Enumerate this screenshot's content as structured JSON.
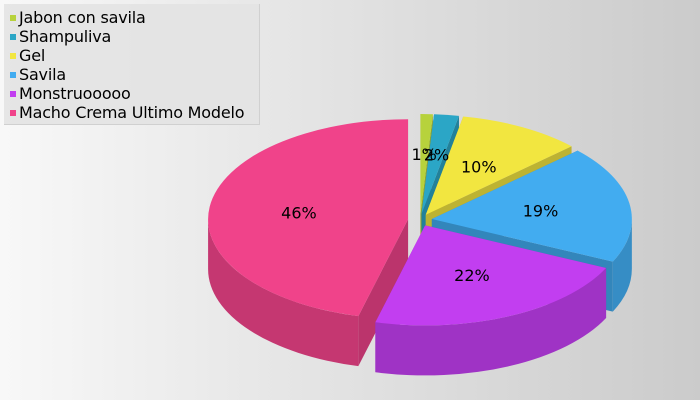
{
  "chart_data": {
    "type": "pie",
    "style": "3d-exploded",
    "title": "",
    "legend_position": "top-left",
    "slices": [
      {
        "label": "Jabon con savila",
        "value": 1,
        "display": "1%",
        "color": "#b7d23c"
      },
      {
        "label": "Shampuliva",
        "value": 2,
        "display": "2%",
        "color": "#2ba6c6"
      },
      {
        "label": "Gel",
        "value": 10,
        "display": "10%",
        "color": "#f2e640"
      },
      {
        "label": "Savila",
        "value": 19,
        "display": "19%",
        "color": "#42acf0"
      },
      {
        "label": "Monstruooooo",
        "value": 22,
        "display": "22%",
        "color": "#c23ef0"
      },
      {
        "label": "Macho Crema Ultimo Modelo",
        "value": 46,
        "display": "46%",
        "color": "#f0438a"
      }
    ]
  }
}
